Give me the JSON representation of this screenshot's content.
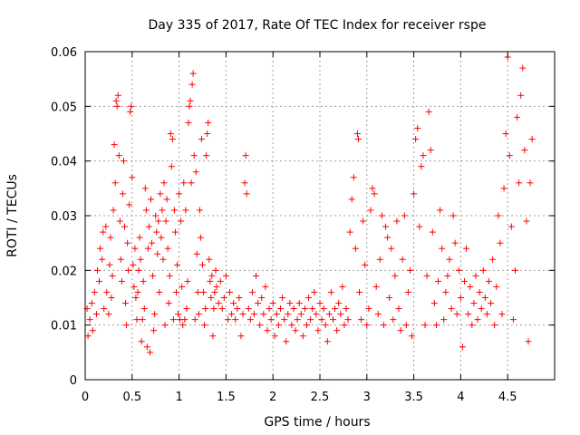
{
  "chart_data": {
    "type": "scatter",
    "title": "Day 335 of 2017, Rate Of TEC Index for receiver rspe",
    "xlabel": "GPS time / hours",
    "ylabel": "ROTI / TECUs",
    "xlim": [
      0,
      5.0
    ],
    "ylim": [
      0,
      0.06
    ],
    "xticks": [
      0,
      0.5,
      1,
      1.5,
      2,
      2.5,
      3,
      3.5,
      4,
      4.5
    ],
    "xtick_labels": [
      "0",
      "0.5",
      "1",
      "1.5",
      "2",
      "2.5",
      "3",
      "3.5",
      "4",
      "4.5"
    ],
    "yticks": [
      0,
      0.01,
      0.02,
      0.03,
      0.04,
      0.05,
      0.06
    ],
    "ytick_labels": [
      "0",
      "0.01",
      "0.02",
      "0.03",
      "0.04",
      "0.05",
      "0.06"
    ],
    "grid": true,
    "marker": "+",
    "color": "#ff0000",
    "series": [
      {
        "name": "rspe",
        "points": [
          [
            0.02,
            0.013
          ],
          [
            0.03,
            0.008
          ],
          [
            0.05,
            0.011
          ],
          [
            0.07,
            0.014
          ],
          [
            0.08,
            0.009
          ],
          [
            0.1,
            0.016
          ],
          [
            0.12,
            0.012
          ],
          [
            0.13,
            0.02
          ],
          [
            0.15,
            0.018
          ],
          [
            0.16,
            0.024
          ],
          [
            0.18,
            0.022
          ],
          [
            0.19,
            0.027
          ],
          [
            0.2,
            0.013
          ],
          [
            0.22,
            0.028
          ],
          [
            0.23,
            0.016
          ],
          [
            0.25,
            0.012
          ],
          [
            0.26,
            0.021
          ],
          [
            0.27,
            0.026
          ],
          [
            0.28,
            0.015
          ],
          [
            0.29,
            0.019
          ],
          [
            0.3,
            0.031
          ],
          [
            0.31,
            0.043
          ],
          [
            0.32,
            0.036
          ],
          [
            0.33,
            0.051
          ],
          [
            0.34,
            0.05
          ],
          [
            0.35,
            0.052
          ],
          [
            0.36,
            0.041
          ],
          [
            0.37,
            0.029
          ],
          [
            0.38,
            0.022
          ],
          [
            0.39,
            0.018
          ],
          [
            0.4,
            0.034
          ],
          [
            0.41,
            0.04
          ],
          [
            0.42,
            0.028
          ],
          [
            0.43,
            0.014
          ],
          [
            0.44,
            0.01
          ],
          [
            0.45,
            0.025
          ],
          [
            0.46,
            0.02
          ],
          [
            0.47,
            0.032
          ],
          [
            0.48,
            0.049
          ],
          [
            0.49,
            0.05
          ],
          [
            0.5,
            0.037
          ],
          [
            0.51,
            0.021
          ],
          [
            0.52,
            0.017
          ],
          [
            0.53,
            0.024
          ],
          [
            0.54,
            0.015
          ],
          [
            0.55,
            0.011
          ],
          [
            0.56,
            0.016
          ],
          [
            0.57,
            0.02
          ],
          [
            0.58,
            0.026
          ],
          [
            0.59,
            0.022
          ],
          [
            0.6,
            0.007
          ],
          [
            0.61,
            0.011
          ],
          [
            0.62,
            0.018
          ],
          [
            0.63,
            0.013
          ],
          [
            0.64,
            0.035
          ],
          [
            0.65,
            0.031
          ],
          [
            0.66,
            0.006
          ],
          [
            0.67,
            0.024
          ],
          [
            0.68,
            0.028
          ],
          [
            0.69,
            0.005
          ],
          [
            0.7,
            0.033
          ],
          [
            0.71,
            0.025
          ],
          [
            0.72,
            0.019
          ],
          [
            0.73,
            0.009
          ],
          [
            0.74,
            0.012
          ],
          [
            0.75,
            0.03
          ],
          [
            0.76,
            0.027
          ],
          [
            0.77,
            0.023
          ],
          [
            0.78,
            0.029
          ],
          [
            0.79,
            0.016
          ],
          [
            0.8,
            0.034
          ],
          [
            0.81,
            0.026
          ],
          [
            0.82,
            0.031
          ],
          [
            0.83,
            0.022
          ],
          [
            0.84,
            0.036
          ],
          [
            0.85,
            0.01
          ],
          [
            0.86,
            0.029
          ],
          [
            0.87,
            0.033
          ],
          [
            0.88,
            0.024
          ],
          [
            0.89,
            0.014
          ],
          [
            0.9,
            0.019
          ],
          [
            0.91,
            0.045
          ],
          [
            0.92,
            0.039
          ],
          [
            0.93,
            0.044
          ],
          [
            0.94,
            0.011
          ],
          [
            0.95,
            0.031
          ],
          [
            0.96,
            0.027
          ],
          [
            0.97,
            0.016
          ],
          [
            0.98,
            0.021
          ],
          [
            0.99,
            0.012
          ],
          [
            1.0,
            0.034
          ],
          [
            1.01,
            0.011
          ],
          [
            1.02,
            0.029
          ],
          [
            1.03,
            0.017
          ],
          [
            1.04,
            0.01
          ],
          [
            1.05,
            0.036
          ],
          [
            1.06,
            0.011
          ],
          [
            1.07,
            0.031
          ],
          [
            1.08,
            0.013
          ],
          [
            1.09,
            0.018
          ],
          [
            1.1,
            0.047
          ],
          [
            1.11,
            0.05
          ],
          [
            1.12,
            0.051
          ],
          [
            1.13,
            0.036
          ],
          [
            1.14,
            0.054
          ],
          [
            1.15,
            0.056
          ],
          [
            1.16,
            0.041
          ],
          [
            1.17,
            0.011
          ],
          [
            1.18,
            0.038
          ],
          [
            1.19,
            0.023
          ],
          [
            1.2,
            0.016
          ],
          [
            1.21,
            0.012
          ],
          [
            1.22,
            0.031
          ],
          [
            1.23,
            0.026
          ],
          [
            1.24,
            0.044
          ],
          [
            1.25,
            0.021
          ],
          [
            1.26,
            0.016
          ],
          [
            1.27,
            0.01
          ],
          [
            1.28,
            0.013
          ],
          [
            1.29,
            0.041
          ],
          [
            1.3,
            0.045
          ],
          [
            1.31,
            0.047
          ],
          [
            1.32,
            0.022
          ],
          [
            1.33,
            0.018
          ],
          [
            1.34,
            0.015
          ],
          [
            1.35,
            0.019
          ],
          [
            1.36,
            0.008
          ],
          [
            1.37,
            0.013
          ],
          [
            1.38,
            0.016
          ],
          [
            1.39,
            0.02
          ],
          [
            1.4,
            0.017
          ],
          [
            1.42,
            0.014
          ],
          [
            1.44,
            0.018
          ],
          [
            1.46,
            0.013
          ],
          [
            1.48,
            0.015
          ],
          [
            1.5,
            0.019
          ],
          [
            1.52,
            0.011
          ],
          [
            1.54,
            0.016
          ],
          [
            1.56,
            0.012
          ],
          [
            1.58,
            0.014
          ],
          [
            1.6,
            0.011
          ],
          [
            1.62,
            0.013
          ],
          [
            1.64,
            0.015
          ],
          [
            1.66,
            0.008
          ],
          [
            1.68,
            0.012
          ],
          [
            1.7,
            0.036
          ],
          [
            1.71,
            0.041
          ],
          [
            1.72,
            0.034
          ],
          [
            1.74,
            0.013
          ],
          [
            1.76,
            0.011
          ],
          [
            1.78,
            0.016
          ],
          [
            1.8,
            0.012
          ],
          [
            1.82,
            0.019
          ],
          [
            1.84,
            0.014
          ],
          [
            1.86,
            0.01
          ],
          [
            1.88,
            0.015
          ],
          [
            1.9,
            0.012
          ],
          [
            1.92,
            0.017
          ],
          [
            1.94,
            0.009
          ],
          [
            1.96,
            0.013
          ],
          [
            1.98,
            0.011
          ],
          [
            2.0,
            0.014
          ],
          [
            2.02,
            0.008
          ],
          [
            2.04,
            0.012
          ],
          [
            2.06,
            0.01
          ],
          [
            2.08,
            0.013
          ],
          [
            2.1,
            0.015
          ],
          [
            2.12,
            0.011
          ],
          [
            2.14,
            0.007
          ],
          [
            2.16,
            0.012
          ],
          [
            2.18,
            0.014
          ],
          [
            2.2,
            0.01
          ],
          [
            2.22,
            0.013
          ],
          [
            2.24,
            0.009
          ],
          [
            2.26,
            0.011
          ],
          [
            2.28,
            0.014
          ],
          [
            2.3,
            0.012
          ],
          [
            2.32,
            0.008
          ],
          [
            2.34,
            0.013
          ],
          [
            2.36,
            0.01
          ],
          [
            2.38,
            0.015
          ],
          [
            2.4,
            0.011
          ],
          [
            2.42,
            0.013
          ],
          [
            2.44,
            0.016
          ],
          [
            2.46,
            0.012
          ],
          [
            2.48,
            0.009
          ],
          [
            2.5,
            0.014
          ],
          [
            2.52,
            0.011
          ],
          [
            2.54,
            0.013
          ],
          [
            2.56,
            0.01
          ],
          [
            2.58,
            0.007
          ],
          [
            2.6,
            0.012
          ],
          [
            2.62,
            0.016
          ],
          [
            2.64,
            0.011
          ],
          [
            2.66,
            0.013
          ],
          [
            2.68,
            0.009
          ],
          [
            2.7,
            0.014
          ],
          [
            2.72,
            0.012
          ],
          [
            2.74,
            0.017
          ],
          [
            2.76,
            0.01
          ],
          [
            2.78,
            0.013
          ],
          [
            2.8,
            0.011
          ],
          [
            2.82,
            0.027
          ],
          [
            2.84,
            0.033
          ],
          [
            2.86,
            0.037
          ],
          [
            2.88,
            0.024
          ],
          [
            2.9,
            0.045
          ],
          [
            2.91,
            0.044
          ],
          [
            2.92,
            0.016
          ],
          [
            2.94,
            0.011
          ],
          [
            2.96,
            0.029
          ],
          [
            2.98,
            0.021
          ],
          [
            3.0,
            0.01
          ],
          [
            3.02,
            0.013
          ],
          [
            3.04,
            0.031
          ],
          [
            3.06,
            0.035
          ],
          [
            3.08,
            0.034
          ],
          [
            3.1,
            0.017
          ],
          [
            3.12,
            0.012
          ],
          [
            3.14,
            0.022
          ],
          [
            3.16,
            0.03
          ],
          [
            3.18,
            0.01
          ],
          [
            3.2,
            0.028
          ],
          [
            3.22,
            0.026
          ],
          [
            3.24,
            0.015
          ],
          [
            3.26,
            0.024
          ],
          [
            3.28,
            0.011
          ],
          [
            3.3,
            0.019
          ],
          [
            3.32,
            0.029
          ],
          [
            3.34,
            0.013
          ],
          [
            3.36,
            0.009
          ],
          [
            3.38,
            0.022
          ],
          [
            3.4,
            0.03
          ],
          [
            3.42,
            0.01
          ],
          [
            3.44,
            0.016
          ],
          [
            3.46,
            0.02
          ],
          [
            3.48,
            0.008
          ],
          [
            3.5,
            0.034
          ],
          [
            3.52,
            0.044
          ],
          [
            3.54,
            0.046
          ],
          [
            3.56,
            0.028
          ],
          [
            3.58,
            0.039
          ],
          [
            3.6,
            0.041
          ],
          [
            3.62,
            0.01
          ],
          [
            3.64,
            0.019
          ],
          [
            3.66,
            0.049
          ],
          [
            3.68,
            0.042
          ],
          [
            3.7,
            0.027
          ],
          [
            3.72,
            0.014
          ],
          [
            3.74,
            0.01
          ],
          [
            3.76,
            0.018
          ],
          [
            3.78,
            0.031
          ],
          [
            3.8,
            0.024
          ],
          [
            3.82,
            0.011
          ],
          [
            3.84,
            0.016
          ],
          [
            3.86,
            0.019
          ],
          [
            3.88,
            0.022
          ],
          [
            3.9,
            0.013
          ],
          [
            3.92,
            0.03
          ],
          [
            3.94,
            0.025
          ],
          [
            3.96,
            0.012
          ],
          [
            3.98,
            0.02
          ],
          [
            4.0,
            0.015
          ],
          [
            4.02,
            0.006
          ],
          [
            4.04,
            0.018
          ],
          [
            4.06,
            0.024
          ],
          [
            4.08,
            0.012
          ],
          [
            4.1,
            0.017
          ],
          [
            4.12,
            0.01
          ],
          [
            4.14,
            0.014
          ],
          [
            4.16,
            0.019
          ],
          [
            4.18,
            0.011
          ],
          [
            4.2,
            0.016
          ],
          [
            4.22,
            0.013
          ],
          [
            4.24,
            0.02
          ],
          [
            4.26,
            0.015
          ],
          [
            4.28,
            0.012
          ],
          [
            4.3,
            0.018
          ],
          [
            4.32,
            0.014
          ],
          [
            4.34,
            0.022
          ],
          [
            4.36,
            0.01
          ],
          [
            4.38,
            0.017
          ],
          [
            4.4,
            0.03
          ],
          [
            4.42,
            0.025
          ],
          [
            4.44,
            0.012
          ],
          [
            4.46,
            0.035
          ],
          [
            4.48,
            0.045
          ],
          [
            4.5,
            0.059
          ],
          [
            4.52,
            0.041
          ],
          [
            4.54,
            0.028
          ],
          [
            4.56,
            0.011
          ],
          [
            4.58,
            0.02
          ],
          [
            4.6,
            0.048
          ],
          [
            4.62,
            0.036
          ],
          [
            4.64,
            0.052
          ],
          [
            4.66,
            0.057
          ],
          [
            4.68,
            0.042
          ],
          [
            4.7,
            0.029
          ],
          [
            4.72,
            0.007
          ],
          [
            4.74,
            0.036
          ],
          [
            4.76,
            0.044
          ]
        ]
      }
    ]
  }
}
